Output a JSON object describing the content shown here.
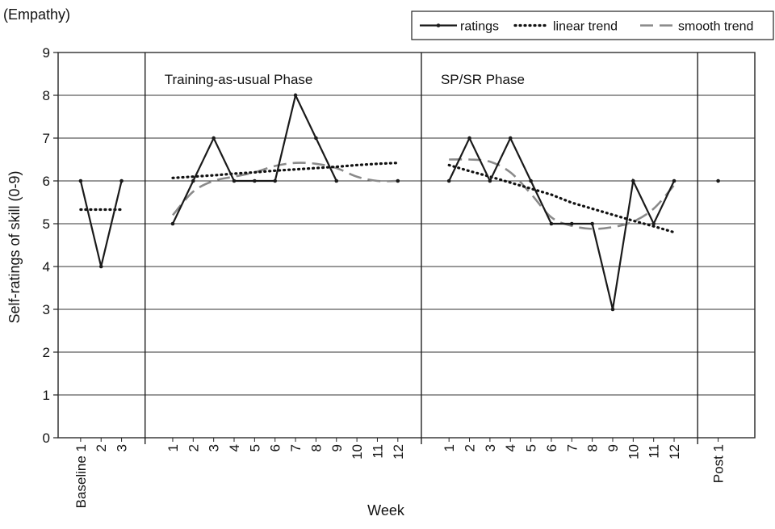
{
  "chart_data": {
    "type": "line",
    "top_label": "(Empathy)",
    "xlabel": "Week",
    "ylabel": "Self-ratings of skill (0-9)",
    "ylim": [
      0,
      9
    ],
    "yticks": [
      0,
      1,
      2,
      3,
      4,
      5,
      6,
      7,
      8,
      9
    ],
    "grid": true,
    "legend": {
      "placement": "top-right",
      "entries": [
        {
          "key": "ratings",
          "label": "ratings"
        },
        {
          "key": "linear",
          "label": "linear trend"
        },
        {
          "key": "smooth",
          "label": "smooth trend"
        }
      ]
    },
    "phases": [
      {
        "name": "",
        "tick_labels": [
          "Baseline 1",
          "2",
          "3"
        ],
        "ratings": [
          6,
          4,
          6
        ],
        "linear_trend": [
          5.33,
          5.33,
          5.33
        ],
        "smooth_trend": []
      },
      {
        "name": "Training-as-usual Phase",
        "tick_labels": [
          "1",
          "2",
          "3",
          "4",
          "5",
          "6",
          "7",
          "8",
          "9",
          "10",
          "11",
          "12"
        ],
        "ratings": [
          5,
          6,
          7,
          6,
          6,
          6,
          8,
          7,
          6,
          null,
          null,
          6
        ],
        "linear_trend": [
          6.07,
          6.1,
          6.13,
          6.17,
          6.2,
          6.24,
          6.27,
          6.3,
          6.33,
          6.37,
          6.4,
          6.42
        ],
        "smooth_trend": [
          5.2,
          5.75,
          6.0,
          6.1,
          6.2,
          6.35,
          6.42,
          6.4,
          6.3,
          6.1,
          6.0,
          6.0
        ]
      },
      {
        "name": "SP/SR Phase",
        "tick_labels": [
          "1",
          "2",
          "3",
          "4",
          "5",
          "6",
          "7",
          "8",
          "9",
          "10",
          "11",
          "12"
        ],
        "ratings": [
          6,
          7,
          6,
          7,
          6,
          5,
          5,
          5,
          3,
          6,
          5,
          6
        ],
        "linear_trend": [
          6.37,
          6.23,
          6.1,
          5.96,
          5.82,
          5.68,
          5.49,
          5.35,
          5.21,
          5.07,
          4.94,
          4.8
        ],
        "smooth_trend": [
          6.5,
          6.5,
          6.45,
          6.2,
          5.7,
          5.15,
          4.95,
          4.88,
          4.92,
          5.05,
          5.35,
          5.9
        ]
      },
      {
        "name": "",
        "tick_labels": [
          "Post 1"
        ],
        "ratings": [
          6
        ],
        "linear_trend": [],
        "smooth_trend": []
      }
    ]
  }
}
